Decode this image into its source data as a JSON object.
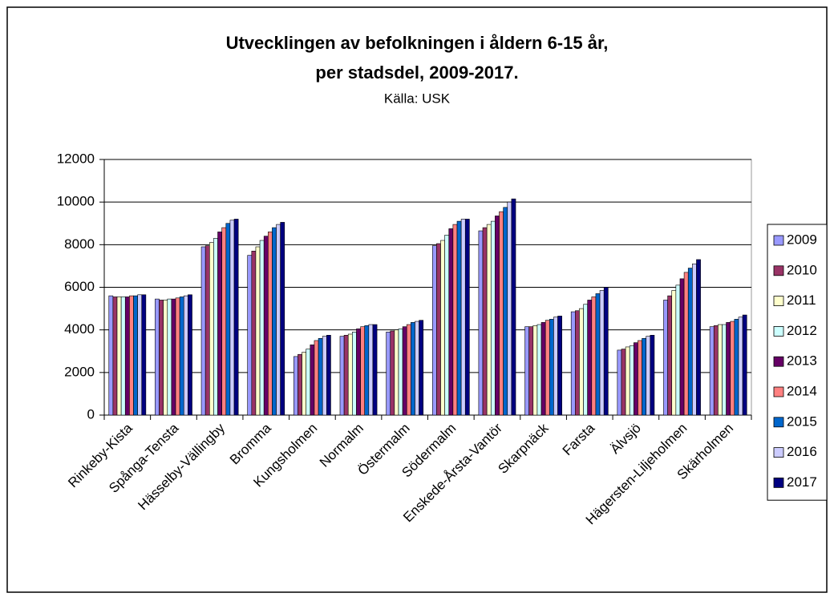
{
  "chart_data": {
    "type": "bar",
    "title": [
      "Utvecklingen av befolkningen i åldern 6-15 år,",
      "per stadsdel, 2009-2017."
    ],
    "subtitle": "Källa: USK",
    "categories": [
      "Rinkeby-Kista",
      "Spånga-Tensta",
      "Hässelby-Vällingby",
      "Bromma",
      "Kungsholmen",
      "Normalm",
      "Östermalm",
      "Södermalm",
      "Enskede-Årsta-Vantör",
      "Skarpnäck",
      "Farsta",
      "Älvsjö",
      "Hägersten-Liljeholmen",
      "Skärholmen"
    ],
    "series": [
      {
        "name": "2009",
        "color": "#9999ff",
        "values": [
          5600,
          5450,
          7900,
          7500,
          2750,
          3700,
          3900,
          7950,
          8650,
          4150,
          4850,
          3050,
          5400,
          4150
        ]
      },
      {
        "name": "2010",
        "color": "#993366",
        "values": [
          5550,
          5400,
          7950,
          7700,
          2850,
          3750,
          3950,
          8050,
          8800,
          4150,
          4900,
          3100,
          5600,
          4200
        ]
      },
      {
        "name": "2011",
        "color": "#ffffcc",
        "values": [
          5550,
          5400,
          8100,
          7900,
          2950,
          3800,
          4000,
          8200,
          8950,
          4200,
          5000,
          3200,
          5850,
          4250
        ]
      },
      {
        "name": "2012",
        "color": "#ccffff",
        "values": [
          5550,
          5450,
          8300,
          8200,
          3100,
          3900,
          4050,
          8450,
          9100,
          4250,
          5200,
          3250,
          6100,
          4250
        ]
      },
      {
        "name": "2013",
        "color": "#660066",
        "values": [
          5550,
          5450,
          8600,
          8400,
          3300,
          4050,
          4150,
          8750,
          9350,
          4350,
          5400,
          3400,
          6400,
          4350
        ]
      },
      {
        "name": "2014",
        "color": "#ff8080",
        "values": [
          5600,
          5500,
          8800,
          8600,
          3500,
          4150,
          4250,
          8950,
          9550,
          4450,
          5550,
          3500,
          6700,
          4400
        ]
      },
      {
        "name": "2015",
        "color": "#0066cc",
        "values": [
          5600,
          5550,
          9000,
          8800,
          3600,
          4200,
          4350,
          9100,
          9750,
          4500,
          5700,
          3600,
          6900,
          4500
        ]
      },
      {
        "name": "2016",
        "color": "#ccccff",
        "values": [
          5650,
          5600,
          9150,
          8950,
          3700,
          4250,
          4400,
          9200,
          10000,
          4600,
          5850,
          3700,
          7100,
          4600
        ]
      },
      {
        "name": "2017",
        "color": "#000080",
        "values": [
          5650,
          5650,
          9200,
          9050,
          3750,
          4250,
          4450,
          9200,
          10150,
          4650,
          6000,
          3750,
          7300,
          4700
        ]
      }
    ],
    "ylim": [
      0,
      12000
    ],
    "yticks": [
      0,
      2000,
      4000,
      6000,
      8000,
      10000,
      12000
    ],
    "grid": true,
    "legend": "right"
  }
}
